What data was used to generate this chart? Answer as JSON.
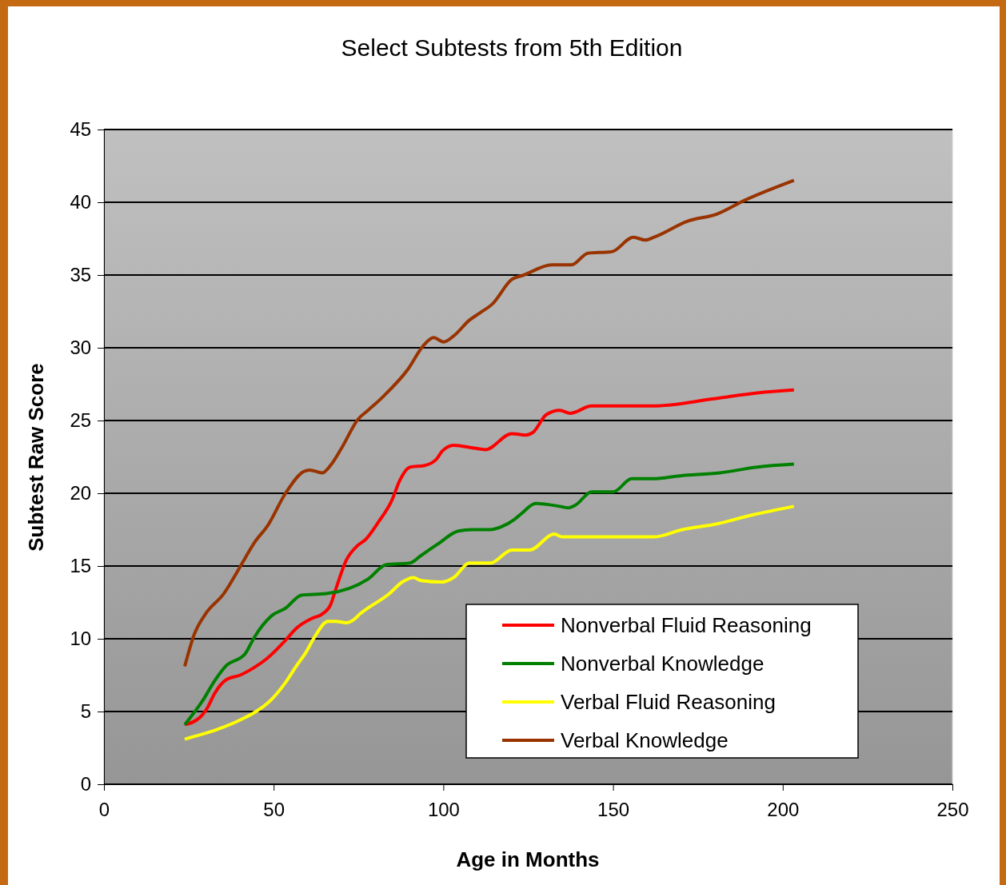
{
  "chart_data": {
    "type": "line",
    "title": "Select Subtests from 5th Edition",
    "xlabel": "Age in Months",
    "ylabel": "Subtest Raw Score",
    "xlim": [
      0,
      250
    ],
    "xticks": [
      0,
      50,
      100,
      150,
      200,
      250
    ],
    "ylim": [
      0,
      45
    ],
    "yticks": [
      0,
      5,
      10,
      15,
      20,
      25,
      30,
      35,
      40,
      45
    ],
    "grid": "y",
    "legend": "bottom right",
    "marker": "none",
    "line_style": "solid",
    "series": [
      {
        "name": "Nonverbal Fluid Reasoning",
        "color": "#ff0000",
        "x": [
          23.8,
          28.3,
          30.6,
          32.5,
          36.1,
          40.1,
          44.1,
          47.8,
          53.5,
          56.6,
          61.3,
          64.3,
          66.7,
          68.3,
          71.4,
          74.7,
          77.0,
          80.8,
          84.8,
          87.2,
          90.2,
          94.3,
          97.8,
          99.7,
          103.0,
          109.1,
          112.4,
          120.2,
          124.2,
          126.5,
          130.3,
          134.3,
          137.4,
          143.7,
          161.9,
          179.8,
          192.5,
          203.3
        ],
        "values": [
          4.1,
          4.6,
          5.3,
          6.2,
          7.2,
          7.5,
          8.0,
          8.6,
          9.9,
          10.7,
          11.4,
          11.7,
          12.3,
          13.4,
          15.4,
          16.4,
          16.8,
          18.0,
          19.5,
          20.9,
          21.8,
          21.9,
          22.3,
          22.9,
          23.3,
          23.1,
          23.0,
          24.1,
          24.0,
          24.2,
          25.4,
          25.7,
          25.5,
          26.0,
          26.0,
          26.5,
          26.9,
          27.1
        ]
      },
      {
        "name": "Nonverbal Knowledge",
        "color": "#008000",
        "x": [
          23.8,
          29.5,
          32.3,
          35.8,
          41.7,
          44.3,
          49.5,
          53.5,
          58.2,
          65.5,
          77.8,
          83.2,
          90.2,
          93.3,
          98.3,
          104.4,
          108.4,
          113.8,
          117.1,
          120.9,
          123.0,
          127.2,
          134.3,
          136.7,
          139.0,
          143.7,
          150.1,
          155.5,
          161.9,
          169.7,
          181.4,
          192.5,
          203.3
        ],
        "values": [
          4.1,
          5.9,
          7.0,
          8.1,
          9.0,
          10.1,
          11.6,
          12.1,
          13.0,
          13.1,
          14.1,
          15.1,
          15.2,
          15.7,
          16.5,
          17.4,
          17.5,
          17.5,
          17.7,
          18.2,
          18.6,
          19.3,
          19.1,
          19.0,
          19.2,
          20.1,
          20.1,
          21.0,
          21.0,
          21.2,
          21.4,
          21.8,
          22.0
        ]
      },
      {
        "name": "Verbal Fluid Reasoning",
        "color": "#ffff00",
        "x": [
          23.8,
          41.7,
          44.8,
          48.8,
          53.5,
          56.6,
          59.6,
          62.0,
          66.0,
          68.3,
          71.4,
          73.5,
          75.4,
          84.1,
          87.9,
          91.2,
          93.5,
          99.7,
          103.0,
          107.7,
          113.8,
          120.2,
          125.4,
          132.7,
          135.0,
          161.9,
          170.4,
          180.7,
          190.9,
          203.3
        ],
        "values": [
          3.1,
          4.6,
          5.0,
          5.7,
          7.0,
          8.1,
          9.1,
          10.1,
          11.2,
          11.2,
          11.1,
          11.3,
          11.7,
          13.1,
          13.9,
          14.2,
          14.0,
          13.9,
          14.2,
          15.2,
          15.2,
          16.1,
          16.1,
          17.2,
          17.0,
          17.0,
          17.5,
          17.9,
          18.5,
          19.1
        ]
      },
      {
        "name": "Verbal Knowledge",
        "color": "#993300",
        "x": [
          23.8,
          26.6,
          29.9,
          35.3,
          40.5,
          44.3,
          48.3,
          53.5,
          58.9,
          60.6,
          64.3,
          66.7,
          70.0,
          74.9,
          77.8,
          82.5,
          89.5,
          94.3,
          97.1,
          100.1,
          103.0,
          107.7,
          110.8,
          114.4,
          120.2,
          123.7,
          132.0,
          137.8,
          142.6,
          149.6,
          156.0,
          159.5,
          162.1,
          172.0,
          180.7,
          188.5,
          203.3
        ],
        "values": [
          8.1,
          10.3,
          11.7,
          13.1,
          15.1,
          16.6,
          17.8,
          20.0,
          21.5,
          21.6,
          21.4,
          21.9,
          23.1,
          25.1,
          25.7,
          26.7,
          28.5,
          30.2,
          30.7,
          30.4,
          30.8,
          31.9,
          32.4,
          33.0,
          34.7,
          35.0,
          35.7,
          35.7,
          36.5,
          36.6,
          37.6,
          37.4,
          37.6,
          38.7,
          39.2,
          40.1,
          41.5
        ]
      }
    ]
  }
}
